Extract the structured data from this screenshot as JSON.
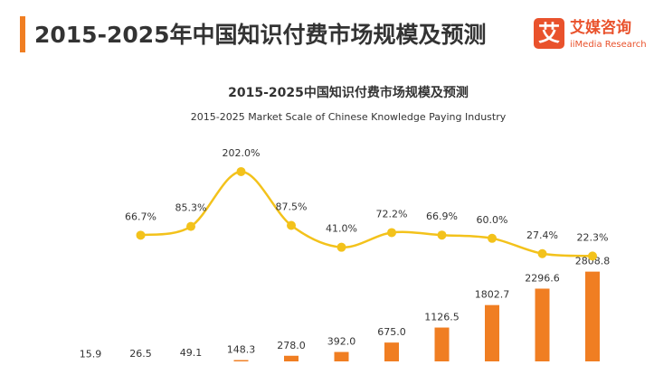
{
  "header": {
    "title": "2015-2025年中国知识付费市场规模及预测",
    "logo": {
      "icon": "艾",
      "name": "艾媒咨询",
      "sub": "iiMedia Research"
    }
  },
  "chart_data": {
    "type": "bar-line",
    "title": "2015-2025中国知识付费市场规模及预测",
    "subtitle": "2015-2025 Market Scale of Chinese Knowledge Paying Industry",
    "ylim": [
      0,
      5000
    ],
    "y2lim": [
      0,
      250
    ],
    "series": [
      {
        "name": null,
        "type": "bar",
        "color": "#f07e22",
        "values": [
          15.9,
          26.5,
          49.1,
          148.3,
          278.0,
          392.0,
          675.0,
          1126.5,
          1802.7,
          2296.6,
          2808.8
        ],
        "value_labels": [
          "15.9",
          "26.5",
          "49.1",
          "148.3",
          "278.0",
          "392.0",
          "675.0",
          "1126.5",
          "1802.7",
          "2296.6",
          "2808.8"
        ]
      },
      {
        "name": null,
        "type": "line",
        "axis": "y2",
        "color": "#f3c21b",
        "values": [
          null,
          66.7,
          85.3,
          202.0,
          87.5,
          41.0,
          72.2,
          66.9,
          60.0,
          27.4,
          22.3
        ],
        "value_labels": [
          null,
          "66.7%",
          "85.3%",
          "202.0%",
          "87.5%",
          "41.0%",
          "72.2%",
          "66.9%",
          "60.0%",
          "27.4%",
          "22.3%"
        ]
      }
    ]
  }
}
